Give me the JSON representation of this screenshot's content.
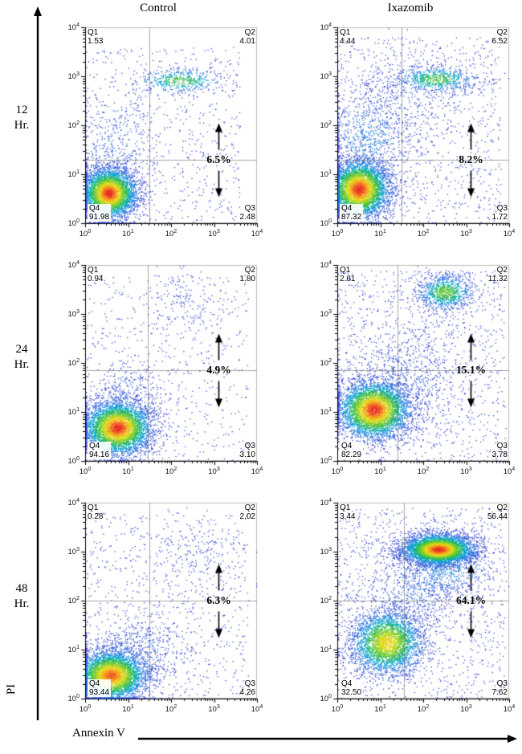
{
  "figure": {
    "column_headers": [
      "Control",
      "Ixazomib"
    ],
    "row_labels": [
      {
        "line1": "12",
        "line2": "Hr."
      },
      {
        "line1": "24",
        "line2": "Hr."
      },
      {
        "line1": "48",
        "line2": "Hr."
      }
    ],
    "x_axis_label": "Annexin V",
    "y_axis_label": "PI",
    "tick_base": "10",
    "tick_exponents": [
      "0",
      "1",
      "2",
      "3",
      "4"
    ],
    "quadrant_names": [
      "Q1",
      "Q2",
      "Q3",
      "Q4"
    ]
  },
  "chart_data": [
    {
      "row": "12 Hr.",
      "column": "Control",
      "type": "scatter",
      "x_axis": {
        "label": "Annexin V",
        "scale": "log",
        "range": [
          1,
          10000
        ]
      },
      "y_axis": {
        "label": "PI",
        "scale": "log",
        "range": [
          1,
          10000
        ]
      },
      "quadrants": {
        "Q1": "1.53",
        "Q2": "4.01",
        "Q3": "2.48",
        "Q4": "91.98"
      },
      "gate_percent": "6.5%",
      "gates": {
        "x_log": 1.5,
        "y_log": 1.3
      },
      "annotation_x_log": 3.1,
      "clusters": [
        {
          "kind": "gauss",
          "cx": 0.55,
          "cy": 0.62,
          "sx": 0.33,
          "sy": 0.26,
          "n": 3800,
          "heat": 1.0
        },
        {
          "kind": "gauss",
          "cx": 0.75,
          "cy": 1.5,
          "sx": 0.45,
          "sy": 0.55,
          "n": 350,
          "heat": 0.15
        },
        {
          "kind": "gauss",
          "cx": 2.2,
          "cy": 2.92,
          "sx": 0.5,
          "sy": 0.13,
          "n": 450,
          "heat": 0.55
        },
        {
          "kind": "uniform",
          "x0": 0,
          "x1": 3.6,
          "y0": 0,
          "y1": 3.6,
          "n": 650,
          "heat": 0.08
        }
      ]
    },
    {
      "row": "12 Hr.",
      "column": "Ixazomib",
      "type": "scatter",
      "x_axis": {
        "label": "Annexin V",
        "scale": "log",
        "range": [
          1,
          10000
        ]
      },
      "y_axis": {
        "label": "PI",
        "scale": "log",
        "range": [
          1,
          10000
        ]
      },
      "quadrants": {
        "Q1": "4.44",
        "Q2": "6.52",
        "Q3": "1.72",
        "Q4": "87.32"
      },
      "gate_percent": "8.2%",
      "gates": {
        "x_log": 1.5,
        "y_log": 1.3
      },
      "annotation_x_log": 3.1,
      "clusters": [
        {
          "kind": "gauss",
          "cx": 0.5,
          "cy": 0.7,
          "sx": 0.36,
          "sy": 0.3,
          "n": 4000,
          "heat": 1.0
        },
        {
          "kind": "gauss",
          "cx": 0.7,
          "cy": 1.7,
          "sx": 0.5,
          "sy": 0.6,
          "n": 700,
          "heat": 0.25
        },
        {
          "kind": "gauss",
          "cx": 2.3,
          "cy": 2.95,
          "sx": 0.5,
          "sy": 0.14,
          "n": 650,
          "heat": 0.55
        },
        {
          "kind": "gauss",
          "cx": 1.5,
          "cy": 2.4,
          "sx": 0.6,
          "sy": 0.5,
          "n": 300,
          "heat": 0.1
        },
        {
          "kind": "uniform",
          "x0": 0,
          "x1": 3.8,
          "y0": 0,
          "y1": 3.8,
          "n": 950,
          "heat": 0.08
        }
      ]
    },
    {
      "row": "24 Hr.",
      "column": "Control",
      "type": "scatter",
      "x_axis": {
        "label": "Annexin V",
        "scale": "log",
        "range": [
          1,
          10000
        ]
      },
      "y_axis": {
        "label": "PI",
        "scale": "log",
        "range": [
          1,
          10000
        ]
      },
      "quadrants": {
        "Q1": "0.94",
        "Q2": "1.80",
        "Q3": "3.10",
        "Q4": "94.16"
      },
      "gate_percent": "4.9%",
      "gates": {
        "x_log": 1.45,
        "y_log": 1.85
      },
      "annotation_x_log": 3.1,
      "clusters": [
        {
          "kind": "gauss",
          "cx": 0.75,
          "cy": 0.68,
          "sx": 0.4,
          "sy": 0.28,
          "n": 4200,
          "heat": 1.0
        },
        {
          "kind": "gauss",
          "cx": 1.0,
          "cy": 1.35,
          "sx": 0.5,
          "sy": 0.4,
          "n": 300,
          "heat": 0.12
        },
        {
          "kind": "gauss",
          "cx": 2.4,
          "cy": 3.3,
          "sx": 0.5,
          "sy": 0.3,
          "n": 120,
          "heat": 0.06
        },
        {
          "kind": "uniform",
          "x0": 0,
          "x1": 3.8,
          "y0": 0,
          "y1": 3.8,
          "n": 600,
          "heat": 0.08
        }
      ]
    },
    {
      "row": "24 Hr.",
      "column": "Ixazomib",
      "type": "scatter",
      "x_axis": {
        "label": "Annexin V",
        "scale": "log",
        "range": [
          1,
          10000
        ]
      },
      "y_axis": {
        "label": "PI",
        "scale": "log",
        "range": [
          1,
          10000
        ]
      },
      "quadrants": {
        "Q1": "2.61",
        "Q2": "11.32",
        "Q3": "3.78",
        "Q4": "82.29"
      },
      "gate_percent": "15.1%",
      "gates": {
        "x_log": 1.4,
        "y_log": 1.85
      },
      "annotation_x_log": 3.1,
      "clusters": [
        {
          "kind": "gauss",
          "cx": 0.85,
          "cy": 1.05,
          "sx": 0.42,
          "sy": 0.3,
          "n": 4200,
          "heat": 1.0
        },
        {
          "kind": "gauss",
          "cx": 2.5,
          "cy": 3.45,
          "sx": 0.33,
          "sy": 0.18,
          "n": 900,
          "heat": 0.6
        },
        {
          "kind": "gauss",
          "cx": 1.6,
          "cy": 1.7,
          "sx": 0.7,
          "sy": 0.55,
          "n": 600,
          "heat": 0.12
        },
        {
          "kind": "uniform",
          "x0": 0,
          "x1": 3.9,
          "y0": 0,
          "y1": 3.9,
          "n": 1100,
          "heat": 0.08
        }
      ]
    },
    {
      "row": "48 Hr.",
      "column": "Control",
      "type": "scatter",
      "x_axis": {
        "label": "Annexin V",
        "scale": "log",
        "range": [
          1,
          10000
        ]
      },
      "y_axis": {
        "label": "PI",
        "scale": "log",
        "range": [
          1,
          10000
        ]
      },
      "quadrants": {
        "Q1": "0.28",
        "Q2": "2.02",
        "Q3": "4.26",
        "Q4": "93.44"
      },
      "gate_percent": "6.3%",
      "gates": {
        "x_log": 1.5,
        "y_log": 2.0
      },
      "annotation_x_log": 3.1,
      "clusters": [
        {
          "kind": "gauss",
          "cx": 0.6,
          "cy": 0.48,
          "sx": 0.42,
          "sy": 0.26,
          "n": 4000,
          "heat": 0.95
        },
        {
          "kind": "gauss",
          "cx": 1.2,
          "cy": 1.0,
          "sx": 0.6,
          "sy": 0.4,
          "n": 420,
          "heat": 0.15
        },
        {
          "kind": "gauss",
          "cx": 2.5,
          "cy": 2.9,
          "sx": 0.6,
          "sy": 0.4,
          "n": 170,
          "heat": 0.06
        },
        {
          "kind": "uniform",
          "x0": 0,
          "x1": 3.8,
          "y0": 0,
          "y1": 3.8,
          "n": 750,
          "heat": 0.08
        }
      ]
    },
    {
      "row": "48 Hr.",
      "column": "Ixazomib",
      "type": "scatter",
      "x_axis": {
        "label": "Annexin V",
        "scale": "log",
        "range": [
          1,
          10000
        ]
      },
      "y_axis": {
        "label": "PI",
        "scale": "log",
        "range": [
          1,
          10000
        ]
      },
      "quadrants": {
        "Q1": "3.44",
        "Q2": "56.44",
        "Q3": "7.62",
        "Q4": "32.50"
      },
      "gate_percent": "64.1%",
      "gates": {
        "x_log": 1.55,
        "y_log": 2.0
      },
      "annotation_x_log": 3.1,
      "clusters": [
        {
          "kind": "gauss",
          "cx": 2.35,
          "cy": 3.05,
          "sx": 0.42,
          "sy": 0.16,
          "n": 4200,
          "heat": 1.0
        },
        {
          "kind": "gauss",
          "cx": 1.15,
          "cy": 1.15,
          "sx": 0.42,
          "sy": 0.33,
          "n": 3000,
          "heat": 0.8
        },
        {
          "kind": "gauss",
          "cx": 1.8,
          "cy": 2.2,
          "sx": 0.5,
          "sy": 0.5,
          "n": 550,
          "heat": 0.15
        },
        {
          "kind": "gauss",
          "cx": 2.55,
          "cy": 2.62,
          "sx": 0.5,
          "sy": 0.28,
          "n": 450,
          "heat": 0.3
        },
        {
          "kind": "uniform",
          "x0": 0,
          "x1": 3.9,
          "y0": 0,
          "y1": 3.9,
          "n": 1150,
          "heat": 0.08
        }
      ]
    }
  ]
}
